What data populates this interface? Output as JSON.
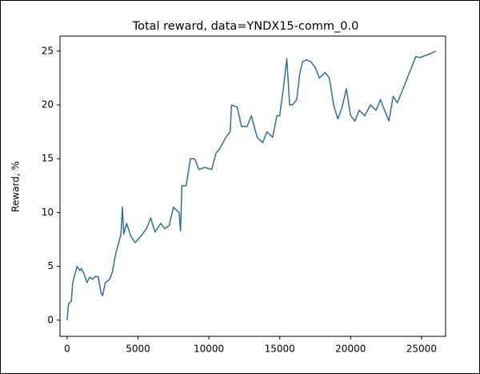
{
  "chart_data": {
    "type": "line",
    "title": "Total reward, data=YNDX15-comm_0.0",
    "y_label": "Reward, %",
    "x": [
      0,
      100,
      300,
      400,
      600,
      700,
      900,
      1000,
      1200,
      1400,
      1600,
      1800,
      2000,
      2200,
      2400,
      2500,
      2700,
      3000,
      3200,
      3400,
      3600,
      3800,
      3900,
      4000,
      4200,
      4500,
      4800,
      5200,
      5600,
      5900,
      6200,
      6600,
      6900,
      7200,
      7500,
      7900,
      8000,
      8100,
      8400,
      8700,
      9000,
      9300,
      9700,
      10200,
      10500,
      10800,
      11200,
      11500,
      11600,
      12000,
      12300,
      12700,
      13000,
      13400,
      13800,
      14100,
      14500,
      14800,
      15000,
      15300,
      15500,
      15700,
      15900,
      16200,
      16400,
      16600,
      16900,
      17200,
      17500,
      17800,
      18200,
      18500,
      18800,
      19100,
      19400,
      19700,
      20000,
      20300,
      20600,
      21000,
      21400,
      21800,
      22100,
      22400,
      22700,
      23000,
      23300,
      23700,
      24000,
      24300,
      24600,
      24900,
      25300,
      25700,
      26000
    ],
    "series": [
      {
        "color": "#2f6f9b",
        "values": [
          0,
          1.5,
          1.8,
          3.5,
          4.5,
          5.0,
          4.6,
          4.8,
          4.3,
          3.5,
          4.0,
          3.8,
          4.1,
          4.0,
          2.5,
          2.3,
          3.5,
          3.8,
          4.5,
          6.0,
          7.0,
          8.0,
          10.5,
          8.0,
          9.0,
          7.8,
          7.2,
          7.8,
          8.5,
          9.5,
          8.2,
          9.0,
          8.5,
          8.8,
          10.5,
          10.0,
          8.3,
          12.5,
          12.5,
          15.0,
          15.0,
          14.0,
          14.2,
          14.0,
          15.5,
          16.0,
          17.0,
          17.5,
          20.0,
          19.8,
          18.0,
          18.0,
          19.0,
          17.0,
          16.5,
          17.5,
          17.0,
          19.0,
          19.0,
          22.0,
          24.3,
          20.0,
          20.0,
          20.5,
          22.8,
          24.0,
          24.2,
          24.0,
          23.5,
          22.5,
          23.0,
          22.5,
          20.0,
          18.7,
          19.8,
          21.5,
          19.0,
          18.5,
          19.5,
          19.0,
          20.0,
          19.5,
          20.5,
          19.5,
          18.5,
          20.8,
          20.2,
          21.5,
          22.5,
          23.5,
          24.5,
          24.4,
          24.6,
          24.8,
          25.0
        ]
      }
    ],
    "xlim": [
      -500,
      26700
    ],
    "ylim": [
      -1.5,
      26.4
    ],
    "xticks": [
      0,
      5000,
      10000,
      15000,
      20000,
      25000
    ],
    "yticks": [
      0,
      5,
      10,
      15,
      20,
      25
    ]
  }
}
